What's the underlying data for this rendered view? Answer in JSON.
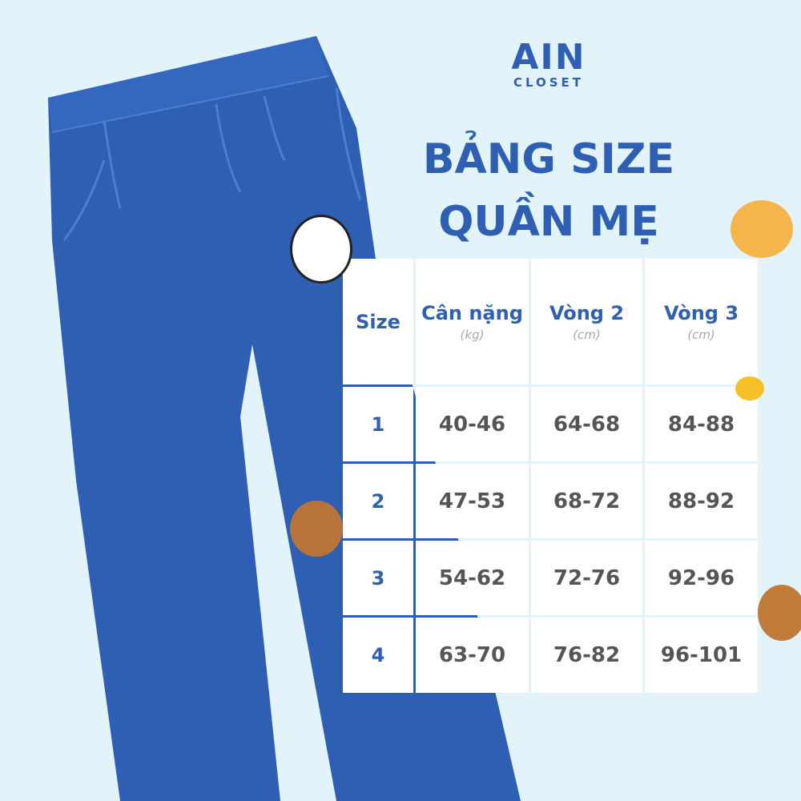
{
  "logo": {
    "main": "AIN",
    "sub": "CLOSET"
  },
  "title": {
    "line1": "BẢNG SIZE",
    "line2": "QUẦN MẸ"
  },
  "colors": {
    "brand": "#2f5fb3",
    "background": "#e2f3fa",
    "value_text": "#555555"
  },
  "table": {
    "headers": [
      {
        "label": "Size",
        "unit": ""
      },
      {
        "label": "Cân nặng",
        "unit": "(kg)"
      },
      {
        "label": "Vòng 2",
        "unit": "(cm)"
      },
      {
        "label": "Vòng 3",
        "unit": "(cm)"
      }
    ],
    "rows": [
      [
        "1",
        "40-46",
        "64-68",
        "84-88"
      ],
      [
        "2",
        "47-53",
        "68-72",
        "88-92"
      ],
      [
        "3",
        "54-62",
        "72-76",
        "92-96"
      ],
      [
        "4",
        "63-70",
        "76-82",
        "96-101"
      ]
    ]
  },
  "decorations": [
    "panda-icon",
    "cat-icon",
    "bee-icon",
    "sloth-icon",
    "monkey-icon"
  ]
}
